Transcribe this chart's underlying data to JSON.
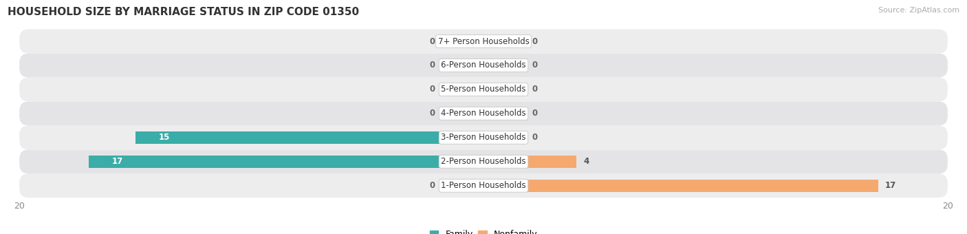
{
  "title": "HOUSEHOLD SIZE BY MARRIAGE STATUS IN ZIP CODE 01350",
  "source": "Source: ZipAtlas.com",
  "categories": [
    "1-Person Households",
    "2-Person Households",
    "3-Person Households",
    "4-Person Households",
    "5-Person Households",
    "6-Person Households",
    "7+ Person Households"
  ],
  "family": [
    0,
    17,
    15,
    0,
    0,
    0,
    0
  ],
  "nonfamily": [
    17,
    4,
    0,
    0,
    0,
    0,
    0
  ],
  "family_color": "#3aada8",
  "nonfamily_color": "#f5a96e",
  "xlim": [
    -20,
    20
  ],
  "bar_height": 0.52,
  "title_fontsize": 11,
  "label_fontsize": 8.5,
  "value_fontsize": 8.5,
  "tick_fontsize": 9,
  "source_fontsize": 8,
  "stub_size": 1.8,
  "row_colors": [
    "#ededee",
    "#e4e4e6"
  ]
}
